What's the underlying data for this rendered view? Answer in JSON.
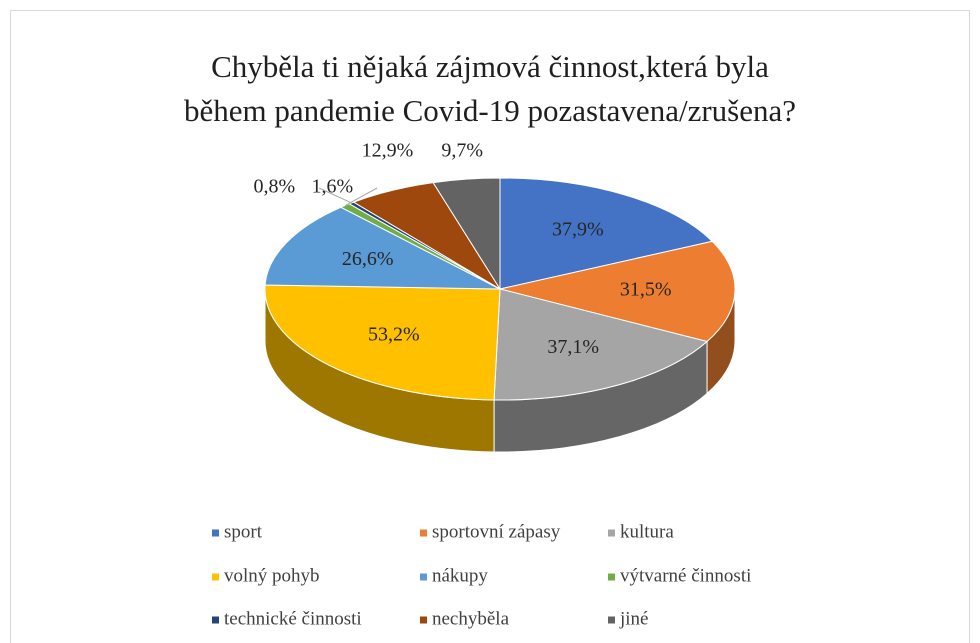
{
  "chart_data": {
    "type": "pie3d",
    "title": [
      "Chyběla ti nějaká zájmová činnost,která byla",
      "během pandemie Covid-19 pozastavena/zrušena?"
    ],
    "categories": [
      "sport",
      "sportovní zápasy",
      "kultura",
      "volný pohyb",
      "nákupy",
      "výtvarné činnosti",
      "technické činnosti",
      "nechyběla",
      "jiné"
    ],
    "values": [
      37.9,
      31.5,
      37.1,
      53.2,
      26.6,
      1.6,
      0.8,
      12.9,
      9.7
    ],
    "value_labels": [
      "37,9%",
      "31,5%",
      "37,1%",
      "53,2%",
      "26,6%",
      "1,6%",
      "0,8%",
      "12,9%",
      "9,7%"
    ],
    "colors": [
      "#4472c4",
      "#ed7d31",
      "#a5a5a5",
      "#ffc000",
      "#5b9bd5",
      "#70ad47",
      "#264478",
      "#9e480e",
      "#636363"
    ],
    "legend": "bottom"
  }
}
